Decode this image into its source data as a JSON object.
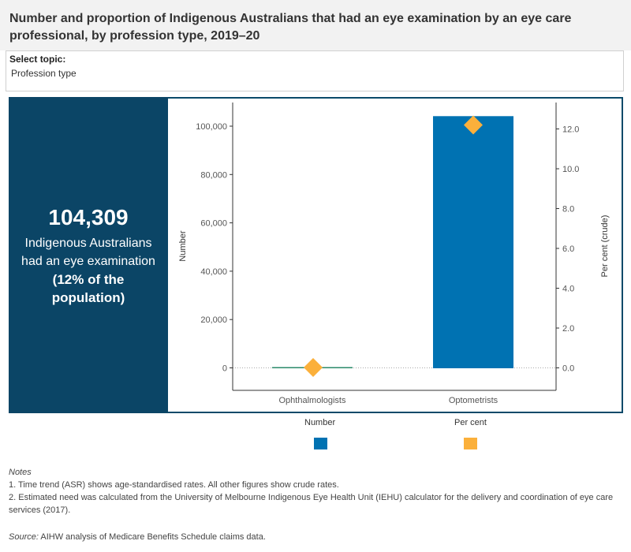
{
  "title": "Number and proportion of Indigenous Australians that had an eye examination by an eye care professional, by profession type, 2019–20",
  "filter": {
    "label": "Select topic:",
    "value": "Profession type"
  },
  "kpi": {
    "number": "104,309",
    "line1": "Indigenous Australians",
    "line2": "had an eye examination",
    "line3": "(12% of the",
    "line4": "population)"
  },
  "chart_data": {
    "type": "bar",
    "categories": [
      "Ophthalmologists",
      "Optometrists"
    ],
    "series": [
      {
        "name": "Number",
        "axis": "left",
        "mark": "bar",
        "color": "#0072b2",
        "values": [
          150,
          104309
        ]
      },
      {
        "name": "Per cent",
        "axis": "right",
        "mark": "diamond",
        "color": "#fbb03b",
        "values": [
          0.02,
          12.2
        ]
      }
    ],
    "ylabel": "Number",
    "y2label": "Per cent (crude)",
    "ylim": [
      -9000,
      110000
    ],
    "y2lim": [
      -1.1,
      13.3
    ],
    "yticks": [
      0,
      20000,
      40000,
      60000,
      80000,
      100000
    ],
    "ytick_labels": [
      "0",
      "20,000",
      "40,000",
      "60,000",
      "80,000",
      "100,000"
    ],
    "y2ticks": [
      0,
      2,
      4,
      6,
      8,
      10,
      12
    ],
    "y2tick_labels": [
      "0.0",
      "2.0",
      "4.0",
      "6.0",
      "8.0",
      "10.0",
      "12.0"
    ],
    "legend": [
      {
        "label": "Number",
        "color": "#0072b2"
      },
      {
        "label": "Per cent",
        "color": "#fbb03b"
      }
    ]
  },
  "notes": {
    "heading": "Notes",
    "line1": "1. Time trend (ASR) shows age-standardised rates. All other figures show crude rates.",
    "line2": "2. Estimated need was calculated from the University of Melbourne Indigenous Eye Health Unit (IEHU) calculator for the delivery and coordination of eye care services (2017)."
  },
  "source": {
    "label": "Source:",
    "text": " AIHW analysis of Medicare Benefits Schedule claims data."
  }
}
